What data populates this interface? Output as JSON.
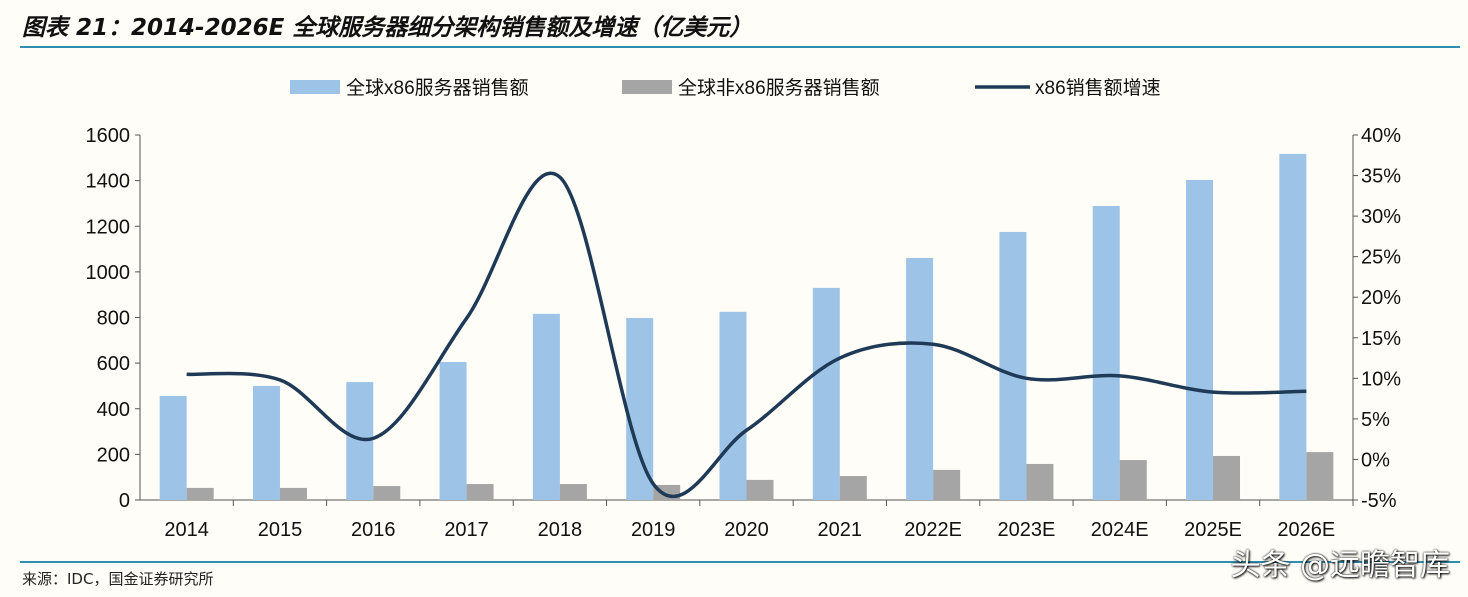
{
  "header": {
    "title": "图表 21：2014-2026E 全球服务器细分架构销售额及增速（亿美元）"
  },
  "footer": {
    "source": "来源：IDC，国金证券研究所",
    "watermark": "头条 @远瞻智库"
  },
  "chart_data": {
    "type": "bar+line",
    "title": "",
    "categories": [
      "2014",
      "2015",
      "2016",
      "2017",
      "2018",
      "2019",
      "2020",
      "2021",
      "2022E",
      "2023E",
      "2024E",
      "2025E",
      "2026E"
    ],
    "series": [
      {
        "name": "全球x86服务器销售额",
        "type": "bar",
        "axis": "left",
        "color": "#9dc3e6",
        "values": [
          456,
          500,
          517,
          605,
          816,
          798,
          825,
          930,
          1061,
          1175,
          1289,
          1403,
          1517
        ]
      },
      {
        "name": "全球非x86服务器销售额",
        "type": "bar",
        "axis": "left",
        "color": "#a5a5a5",
        "values": [
          53,
          53,
          61,
          70,
          70,
          66,
          88,
          105,
          132,
          158,
          175,
          193,
          210
        ]
      },
      {
        "name": "x86销售额增速",
        "type": "line",
        "axis": "right",
        "color": "#1f3a57",
        "values": [
          10.5,
          9.8,
          2.6,
          17.4,
          34.8,
          -3.0,
          3.6,
          12.5,
          14.2,
          10.0,
          10.3,
          8.3,
          8.4
        ]
      }
    ],
    "left_axis": {
      "ylim": [
        0,
        1600
      ],
      "ticks": [
        "0",
        "200",
        "400",
        "600",
        "800",
        "1000",
        "1200",
        "1400",
        "1600"
      ]
    },
    "right_axis": {
      "ylim": [
        -5,
        40
      ],
      "ticks": [
        "-5%",
        "0%",
        "5%",
        "10%",
        "15%",
        "20%",
        "25%",
        "30%",
        "35%",
        "40%"
      ]
    },
    "legend": "top",
    "grid": false
  }
}
